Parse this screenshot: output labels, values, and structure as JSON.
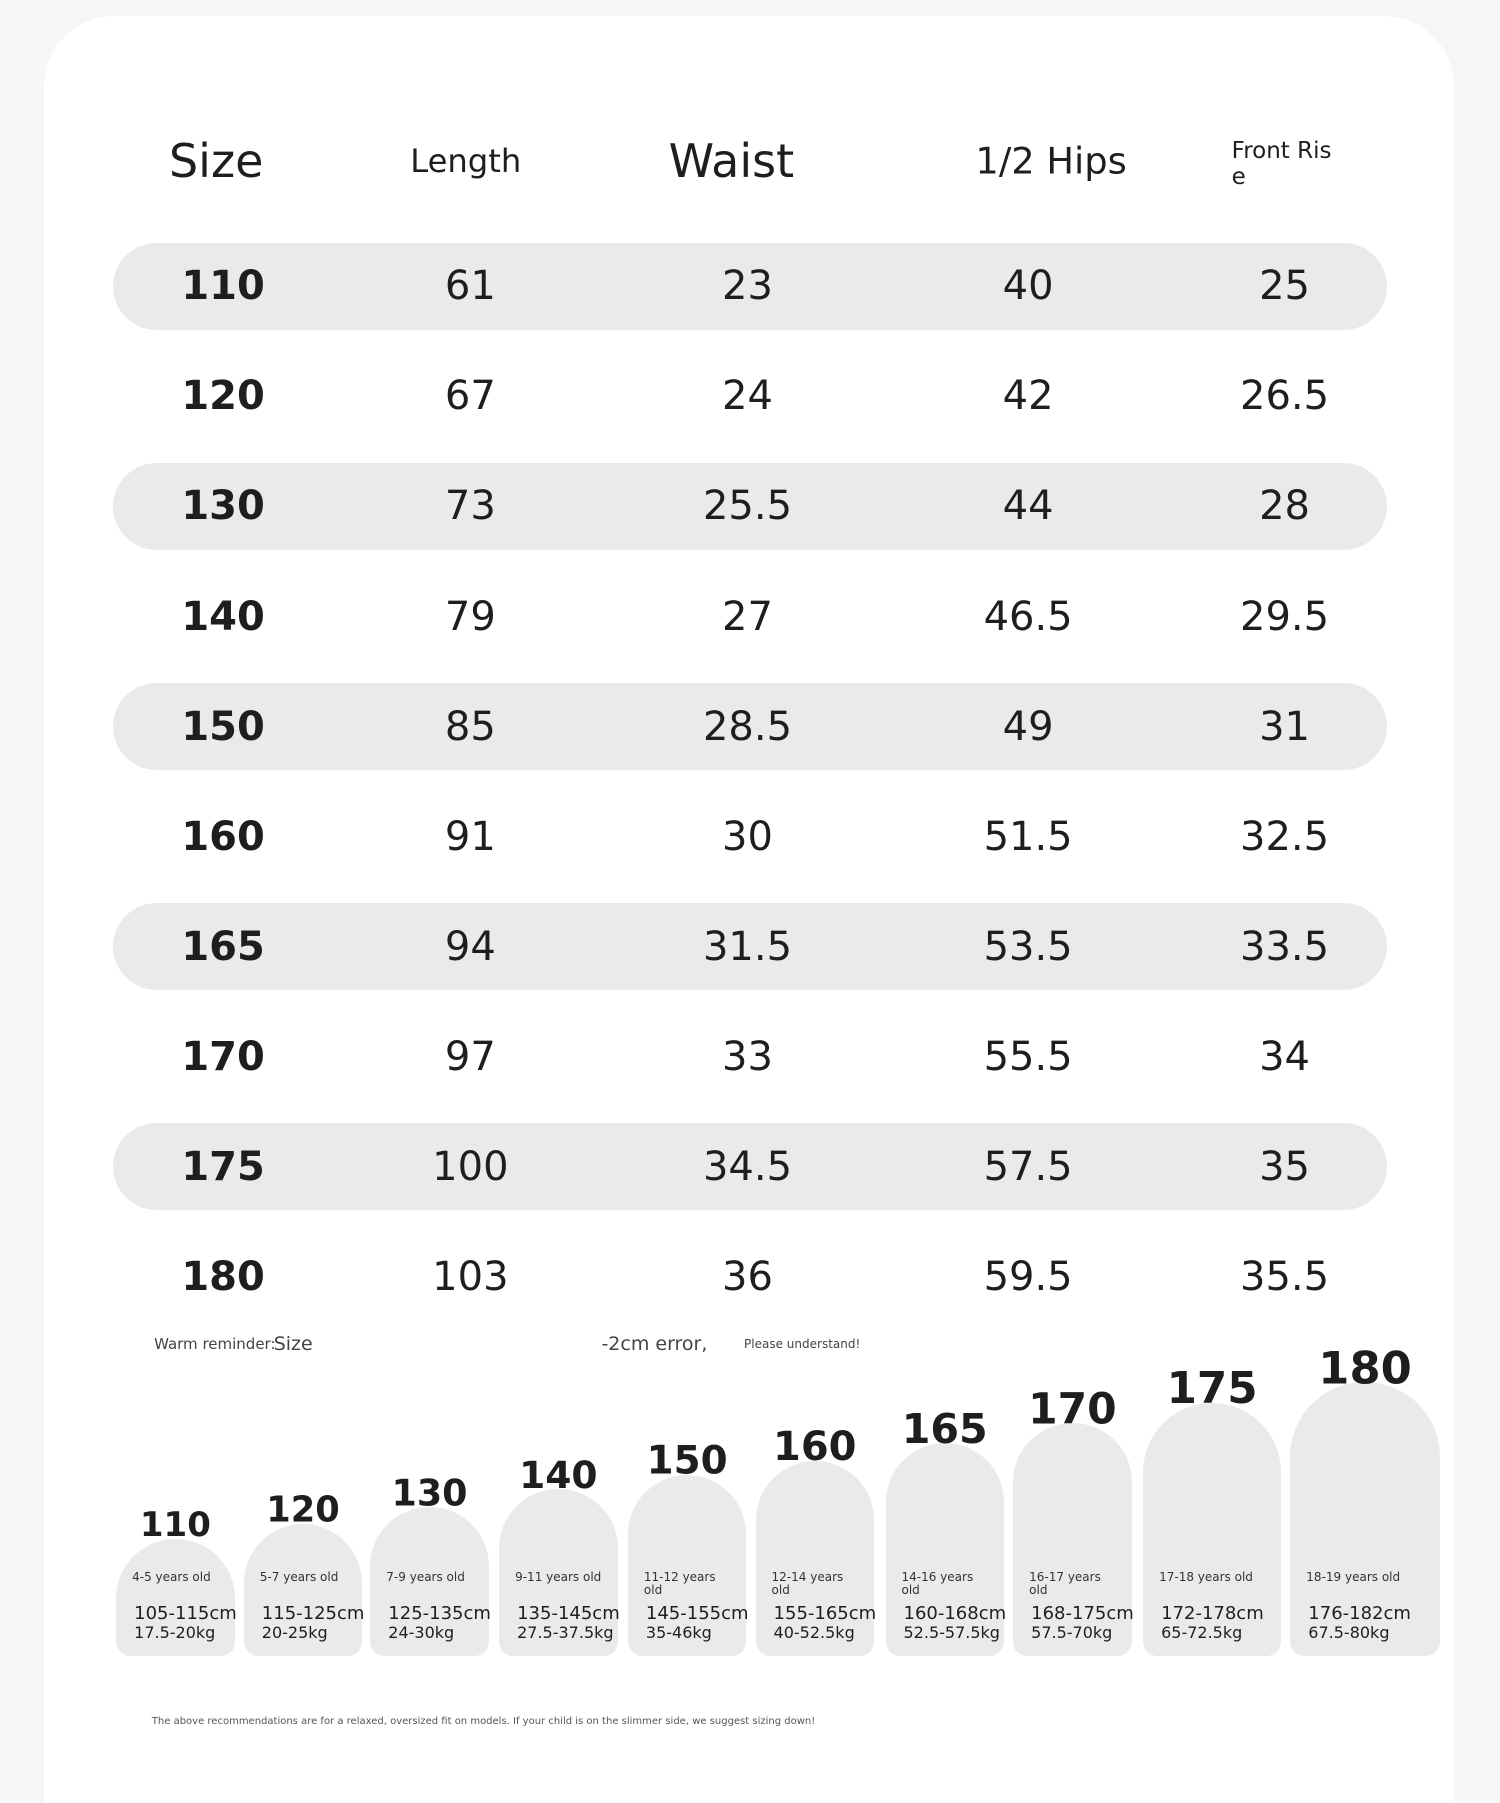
{
  "table": {
    "headers": [
      "Size",
      "Length",
      "Waist",
      "1/2 Hips",
      "Front Rise"
    ],
    "rows": [
      [
        "110",
        "61",
        "23",
        "40",
        "25"
      ],
      [
        "120",
        "67",
        "24",
        "42",
        "26.5"
      ],
      [
        "130",
        "73",
        "25.5",
        "44",
        "28"
      ],
      [
        "140",
        "79",
        "27",
        "46.5",
        "29.5"
      ],
      [
        "150",
        "85",
        "28.5",
        "49",
        "31"
      ],
      [
        "160",
        "91",
        "30",
        "51.5",
        "32.5"
      ],
      [
        "165",
        "94",
        "31.5",
        "53.5",
        "33.5"
      ],
      [
        "170",
        "97",
        "33",
        "55.5",
        "34"
      ],
      [
        "175",
        "100",
        "34.5",
        "57.5",
        "35"
      ],
      [
        "180",
        "103",
        "36",
        "59.5",
        "35.5"
      ]
    ]
  },
  "reminder": {
    "label": "Warm reminder:",
    "size": "Size",
    "error": "-2cm error,",
    "note": "Please understand!"
  },
  "cards": [
    {
      "size": "110",
      "age": "4-5 years old",
      "height": "105-115cm",
      "weight": "17.5-20kg"
    },
    {
      "size": "120",
      "age": "5-7 years old",
      "height": "115-125cm",
      "weight": "20-25kg"
    },
    {
      "size": "130",
      "age": "7-9 years old",
      "height": "125-135cm",
      "weight": "24-30kg"
    },
    {
      "size": "140",
      "age": "9-11 years old",
      "height": "135-145cm",
      "weight": "27.5-37.5kg"
    },
    {
      "size": "150",
      "age": "11-12 years old",
      "height": "145-155cm",
      "weight": "35-46kg"
    },
    {
      "size": "160",
      "age": "12-14 years old",
      "height": "155-165cm",
      "weight": "40-52.5kg"
    },
    {
      "size": "165",
      "age": "14-16 years old",
      "height": "160-168cm",
      "weight": "52.5-57.5kg"
    },
    {
      "size": "170",
      "age": "16-17 years old",
      "height": "168-175cm",
      "weight": "57.5-70kg"
    },
    {
      "size": "175",
      "age": "17-18 years old",
      "height": "172-178cm",
      "weight": "65-72.5kg"
    },
    {
      "size": "180",
      "age": "18-19 years old",
      "height": "176-182cm",
      "weight": "67.5-80kg"
    }
  ],
  "footnote": "The above recommendations are for a relaxed, oversized fit on models. If your child is on the slimmer side, we suggest sizing down!"
}
